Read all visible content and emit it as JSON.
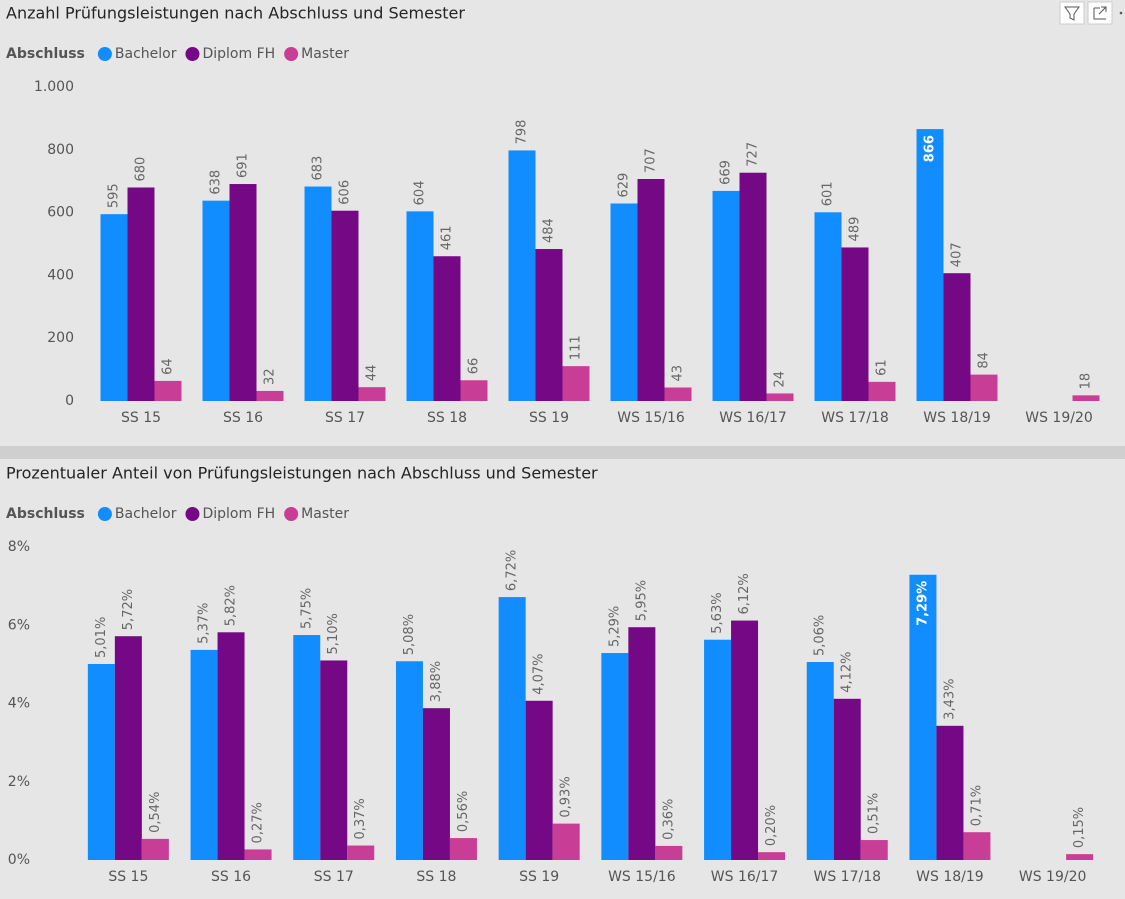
{
  "chart_data": [
    {
      "type": "bar",
      "title": "Anzahl Prüfungsleistungen nach Abschluss und Semester",
      "legend_title": "Abschluss",
      "categories": [
        "SS 15",
        "SS 16",
        "SS 17",
        "SS 18",
        "SS 19",
        "WS 15/16",
        "WS 16/17",
        "WS 17/18",
        "WS 18/19",
        "WS 19/20"
      ],
      "series": [
        {
          "name": "Bachelor",
          "color": "#118dff",
          "values": [
            595,
            638,
            683,
            604,
            798,
            629,
            669,
            601,
            866,
            null
          ]
        },
        {
          "name": "Diplom FH",
          "color": "#750985",
          "values": [
            680,
            691,
            606,
            461,
            484,
            707,
            727,
            489,
            407,
            null
          ]
        },
        {
          "name": "Master",
          "color": "#c83d95",
          "values": [
            64,
            32,
            44,
            66,
            111,
            43,
            24,
            61,
            84,
            18
          ]
        }
      ],
      "ylim": [
        0,
        1000
      ],
      "yticks": [
        0,
        200,
        400,
        600,
        800,
        {
          "value": 1000,
          "label": "1.000"
        }
      ],
      "grid": false
    },
    {
      "type": "bar",
      "title": "Prozentualer Anteil von Prüfungsleistungen nach Abschluss und Semester",
      "legend_title": "Abschluss",
      "categories": [
        "SS 15",
        "SS 16",
        "SS 17",
        "SS 18",
        "SS 19",
        "WS 15/16",
        "WS 16/17",
        "WS 17/18",
        "WS 18/19",
        "WS 19/20"
      ],
      "series": [
        {
          "name": "Bachelor",
          "color": "#118dff",
          "values": [
            5.01,
            5.37,
            5.75,
            5.08,
            6.72,
            5.29,
            5.63,
            5.06,
            7.29,
            null
          ],
          "value_labels": [
            "5,01%",
            "5,37%",
            "5,75%",
            "5,08%",
            "6,72%",
            "5,29%",
            "5,63%",
            "5,06%",
            "7,29%",
            null
          ]
        },
        {
          "name": "Diplom FH",
          "color": "#750985",
          "values": [
            5.72,
            5.82,
            5.1,
            3.88,
            4.07,
            5.95,
            6.12,
            4.12,
            3.43,
            null
          ],
          "value_labels": [
            "5,72%",
            "5,82%",
            "5,10%",
            "3,88%",
            "4,07%",
            "5,95%",
            "6,12%",
            "4,12%",
            "3,43%",
            null
          ]
        },
        {
          "name": "Master",
          "color": "#c83d95",
          "values": [
            0.54,
            0.27,
            0.37,
            0.56,
            0.93,
            0.36,
            0.2,
            0.51,
            0.71,
            0.15
          ],
          "value_labels": [
            "0,54%",
            "0,27%",
            "0,37%",
            "0,56%",
            "0,93%",
            "0,36%",
            "0,20%",
            "0,51%",
            "0,71%",
            "0,15%"
          ]
        }
      ],
      "ylim": [
        0,
        8
      ],
      "yticks": [
        {
          "value": 0,
          "label": "0%"
        },
        {
          "value": 2,
          "label": "2%"
        },
        {
          "value": 4,
          "label": "4%"
        },
        {
          "value": 6,
          "label": "6%"
        },
        {
          "value": 8,
          "label": "8%"
        }
      ],
      "grid": false
    }
  ]
}
